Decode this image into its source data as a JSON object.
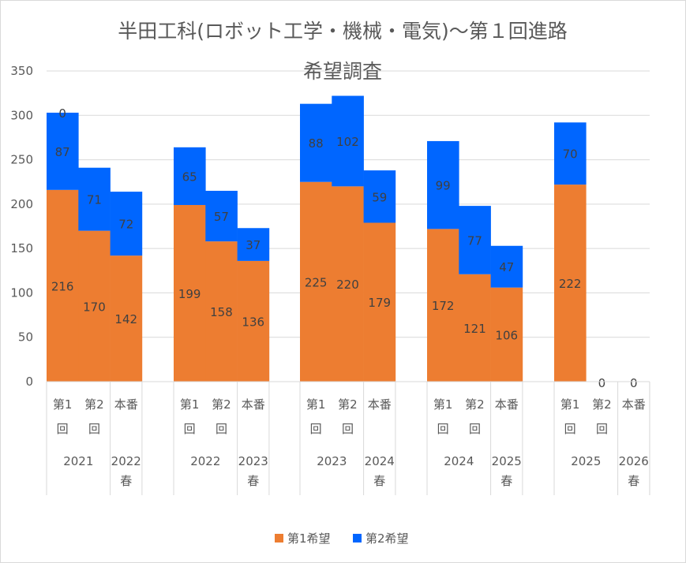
{
  "chart_data": {
    "type": "bar",
    "stacked": true,
    "title": [
      "半田工科(ロボット工学・機械・電気)～第１回進路",
      "希望調査"
    ],
    "ylim": [
      0,
      350
    ],
    "yticks": [
      0,
      50,
      100,
      150,
      200,
      250,
      300,
      350
    ],
    "yticks_text": [
      "0",
      "50",
      "100",
      "150",
      "200",
      "250",
      "300",
      "350"
    ],
    "legend_position": "bottom",
    "groups": [
      {
        "year": "2021",
        "bars": [
          {
            "cat": [
              "第1",
              "回"
            ],
            "first": 216,
            "second": 87
          },
          {
            "cat": [
              "第2",
              "回"
            ],
            "first": 170,
            "second": 71
          },
          {
            "cat": [
              "本番"
            ],
            "first": 142,
            "second": 72
          }
        ],
        "spring": [
          "2022",
          "春"
        ]
      },
      {
        "year": "2022",
        "bars": [
          {
            "cat": [
              "第1",
              "回"
            ],
            "first": 199,
            "second": 65
          },
          {
            "cat": [
              "第2",
              "回"
            ],
            "first": 158,
            "second": 57
          },
          {
            "cat": [
              "本番"
            ],
            "first": 136,
            "second": 37
          }
        ],
        "spring": [
          "2023",
          "春"
        ]
      },
      {
        "year": "2023",
        "bars": [
          {
            "cat": [
              "第1",
              "回"
            ],
            "first": 225,
            "second": 88
          },
          {
            "cat": [
              "第2",
              "回"
            ],
            "first": 220,
            "second": 102
          },
          {
            "cat": [
              "本番"
            ],
            "first": 179,
            "second": 59
          }
        ],
        "spring": [
          "2024",
          "春"
        ]
      },
      {
        "year": "2024",
        "bars": [
          {
            "cat": [
              "第1",
              "回"
            ],
            "first": 172,
            "second": 99
          },
          {
            "cat": [
              "第2",
              "回"
            ],
            "first": 121,
            "second": 77
          },
          {
            "cat": [
              "本番"
            ],
            "first": 106,
            "second": 47
          }
        ],
        "spring": [
          "2025",
          "春"
        ]
      },
      {
        "year": "2025",
        "bars": [
          {
            "cat": [
              "第1",
              "回"
            ],
            "first": 222,
            "second": 70
          },
          {
            "cat": [
              "第2",
              "回"
            ],
            "first": 0,
            "second": 0
          },
          {
            "cat": [
              "本番"
            ],
            "first": 0,
            "second": 0
          }
        ],
        "spring": [
          "2026",
          "春"
        ]
      }
    ],
    "extra_labels": [
      {
        "group": 0,
        "bar": 0,
        "series": "second_top",
        "text": "0"
      },
      {
        "group": 4,
        "bar": 1,
        "series": "zero",
        "text": "0"
      },
      {
        "group": 4,
        "bar": 2,
        "series": "zero",
        "text": "0"
      }
    ],
    "series": [
      {
        "name": "第1希望",
        "color": "#ed7d31"
      },
      {
        "name": "第2希望",
        "color": "#0066ff"
      }
    ]
  }
}
